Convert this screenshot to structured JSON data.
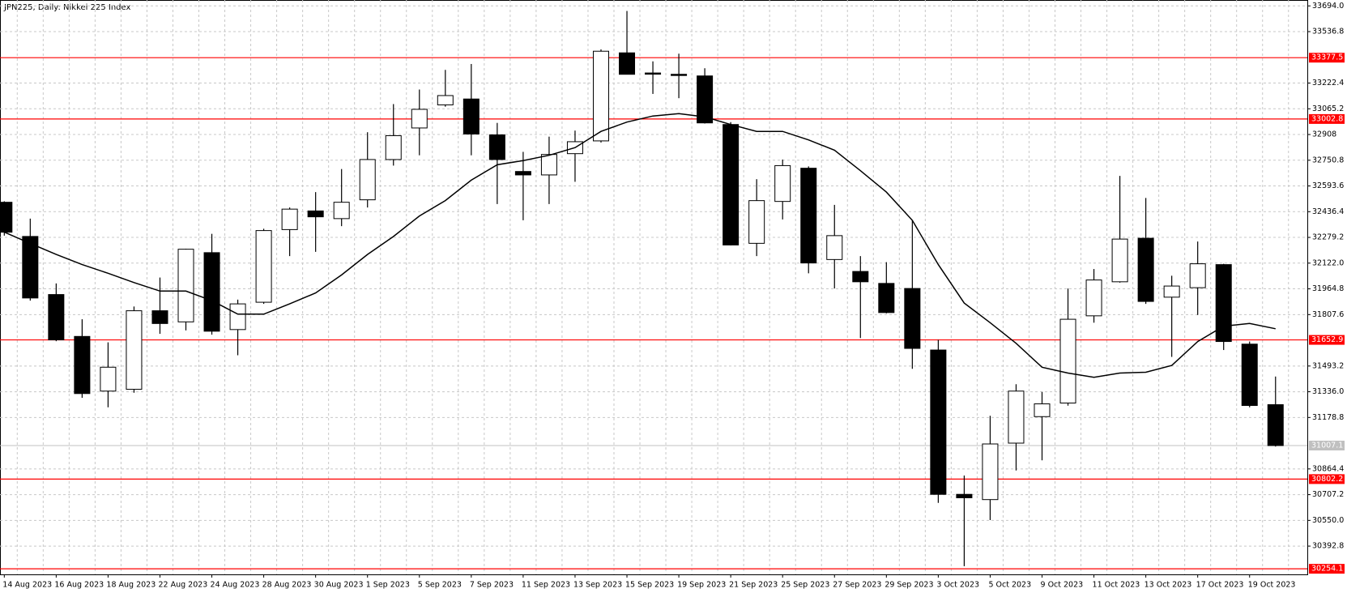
{
  "chart_data": {
    "type": "candlestick",
    "title": "JPN225, Daily:  Nikkei 225 Index",
    "categories": [
      "14 Aug 2023",
      null,
      "16 Aug 2023",
      null,
      "18 Aug 2023",
      null,
      "22 Aug 2023",
      null,
      "24 Aug 2023",
      null,
      "28 Aug 2023",
      null,
      "30 Aug 2023",
      null,
      "1 Sep 2023",
      null,
      "5 Sep 2023",
      null,
      "7 Sep 2023",
      null,
      "11 Sep 2023",
      null,
      "13 Sep 2023",
      null,
      "15 Sep 2023",
      null,
      "19 Sep 2023",
      null,
      "21 Sep 2023",
      null,
      "25 Sep 2023",
      null,
      "27 Sep 2023",
      null,
      "29 Sep 2023",
      null,
      "3 Oct 2023",
      null,
      "5 Oct 2023",
      null,
      "9 Oct 2023",
      null,
      "11 Oct 2023",
      null,
      "13 Oct 2023",
      null,
      "17 Oct 2023",
      null,
      "19 Oct 2023",
      null
    ],
    "open": [
      32494,
      32285,
      31930,
      31674,
      31340,
      31351,
      31831,
      31763,
      32186,
      31716,
      31883,
      32327,
      32441,
      32394,
      32509,
      32755,
      32948,
      33089,
      33125,
      32906,
      32682,
      32661,
      32791,
      32869,
      33407,
      33284,
      33276,
      33266,
      32969,
      32243,
      32499,
      32702,
      32144,
      32071,
      31998,
      31967,
      31591,
      30709,
      30677,
      31022,
      31184,
      31267,
      31800,
      32008,
      32274,
      31914,
      31972,
      32113,
      31627,
      31257
    ],
    "high": [
      32500,
      32394,
      31998,
      31779,
      31638,
      31857,
      32034,
      32210,
      32301,
      31899,
      32332,
      32462,
      32556,
      32697,
      32922,
      33094,
      33183,
      33303,
      33339,
      32979,
      32802,
      32895,
      32932,
      33428,
      33663,
      33355,
      33402,
      33313,
      32984,
      32635,
      32755,
      32713,
      32478,
      32165,
      32128,
      32384,
      31653,
      30824,
      31189,
      31382,
      31335,
      31967,
      32086,
      32655,
      32520,
      32045,
      32254,
      32118,
      31643,
      31429
    ],
    "low": [
      32290,
      31893,
      31645,
      31299,
      31241,
      31330,
      31690,
      31711,
      31685,
      31559,
      31873,
      32165,
      32191,
      32348,
      32462,
      32718,
      32781,
      33078,
      32781,
      32483,
      32384,
      32483,
      32619,
      32859,
      33276,
      33156,
      33130,
      32975,
      32230,
      32165,
      32389,
      32060,
      31967,
      31664,
      31815,
      31476,
      30657,
      30270,
      30552,
      30855,
      30917,
      31251,
      31758,
      32003,
      31873,
      31549,
      31805,
      31591,
      31241,
      31001
    ],
    "close": [
      32311,
      31909,
      31653,
      31325,
      31486,
      31831,
      31753,
      32207,
      31706,
      31873,
      32321,
      32452,
      32405,
      32494,
      32755,
      32901,
      33062,
      33146,
      32911,
      32755,
      32661,
      32786,
      32864,
      33417,
      33276,
      33281,
      33273,
      32979,
      32233,
      32504,
      32718,
      32123,
      32290,
      32008,
      31820,
      31601,
      30709,
      30688,
      31017,
      31340,
      31262,
      31779,
      32019,
      32269,
      31888,
      31982,
      32118,
      31643,
      31252,
      31007.1
    ],
    "up_color": "#ffffff",
    "down_color": "#000000",
    "ma": {
      "color": "#000000",
      "values": [
        32311,
        32243,
        32175,
        32113,
        32060,
        32003,
        31951,
        31951,
        31893,
        31810,
        31810,
        31873,
        31940,
        32050,
        32175,
        32285,
        32410,
        32504,
        32629,
        32723,
        32749,
        32781,
        32828,
        32927,
        32984,
        33021,
        33036,
        33016,
        32969,
        32927,
        32927,
        32875,
        32812,
        32687,
        32556,
        32384,
        32113,
        31878,
        31758,
        31632,
        31486,
        31450,
        31424,
        31450,
        31455,
        31497,
        31643,
        31737,
        31753,
        31721
      ]
    },
    "ylim": [
      30220,
      33730
    ],
    "yticks": [
      {
        "value": 33694,
        "label": "33694.0"
      },
      33536.8,
      33222.4,
      33065.2,
      32908.0,
      32750.8,
      32593.6,
      32436.4,
      32279.2,
      {
        "value": 32122,
        "label": "32122.0"
      },
      31964.8,
      31807.6,
      31493.2,
      {
        "value": 31336,
        "label": "31336.0"
      },
      31178.8,
      30864.4,
      30707.2,
      {
        "value": 30550,
        "label": "30550.0"
      },
      30392.8
    ],
    "hlines": [
      33377.5,
      33002.8,
      31652.9,
      30802.2,
      30254.1
    ],
    "hline_color": "#ff0000",
    "current_price": 31007.1,
    "current_price_color": "#c0c0c0",
    "grid": true
  }
}
